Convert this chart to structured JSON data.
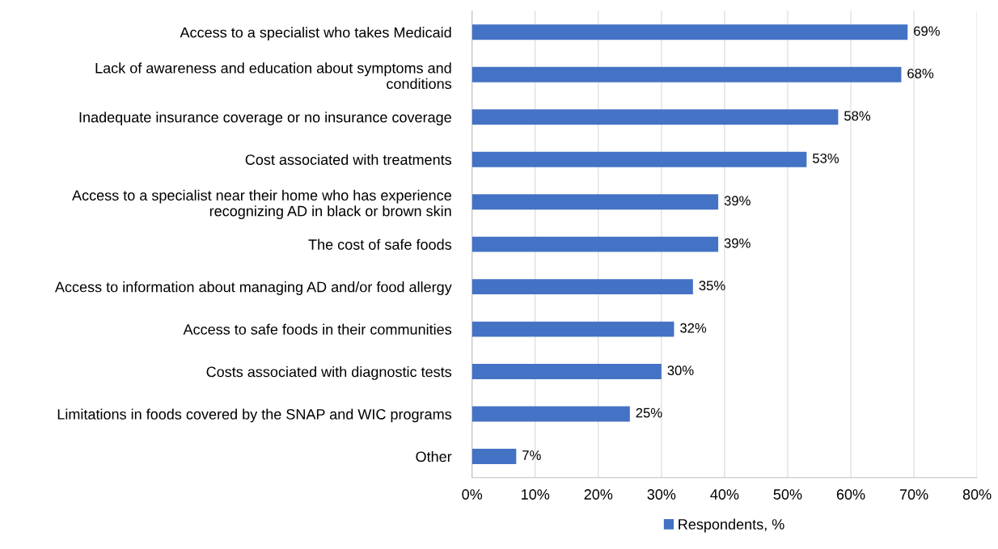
{
  "chart_data": {
    "type": "bar",
    "orientation": "horizontal",
    "categories": [
      "Access to a specialist who takes Medicaid",
      "Lack of awareness and education about symptoms and\nconditions",
      "Inadequate insurance coverage or no insurance coverage",
      "Cost associated with treatments",
      "Access to a specialist near their home who has experience\nrecognizing AD in black or brown skin",
      "The cost of safe foods",
      "Access to information about managing AD and/or food allergy",
      "Access to safe foods in their communities",
      "Costs associated with diagnostic tests",
      "Limitations in foods covered by the SNAP and WIC programs",
      "Other"
    ],
    "series": [
      {
        "name": "Respondents, %",
        "color": "#4472c4",
        "values": [
          69,
          68,
          58,
          53,
          39,
          39,
          35,
          32,
          30,
          25,
          7
        ],
        "value_labels": [
          "69%",
          "68%",
          "58%",
          "53%",
          "39%",
          "39%",
          "35%",
          "32%",
          "30%",
          "25%",
          "7%"
        ]
      }
    ],
    "xlim": [
      0,
      80
    ],
    "xticks": [
      {
        "value": 0,
        "label": "0%"
      },
      {
        "value": 10,
        "label": "10%"
      },
      {
        "value": 20,
        "label": "20%"
      },
      {
        "value": 30,
        "label": "30%"
      },
      {
        "value": 40,
        "label": "40%"
      },
      {
        "value": 50,
        "label": "50%"
      },
      {
        "value": 60,
        "label": "60%"
      },
      {
        "value": 70,
        "label": "70%"
      },
      {
        "value": 80,
        "label": "80%"
      }
    ],
    "grid": "x",
    "legend": "bottom"
  }
}
